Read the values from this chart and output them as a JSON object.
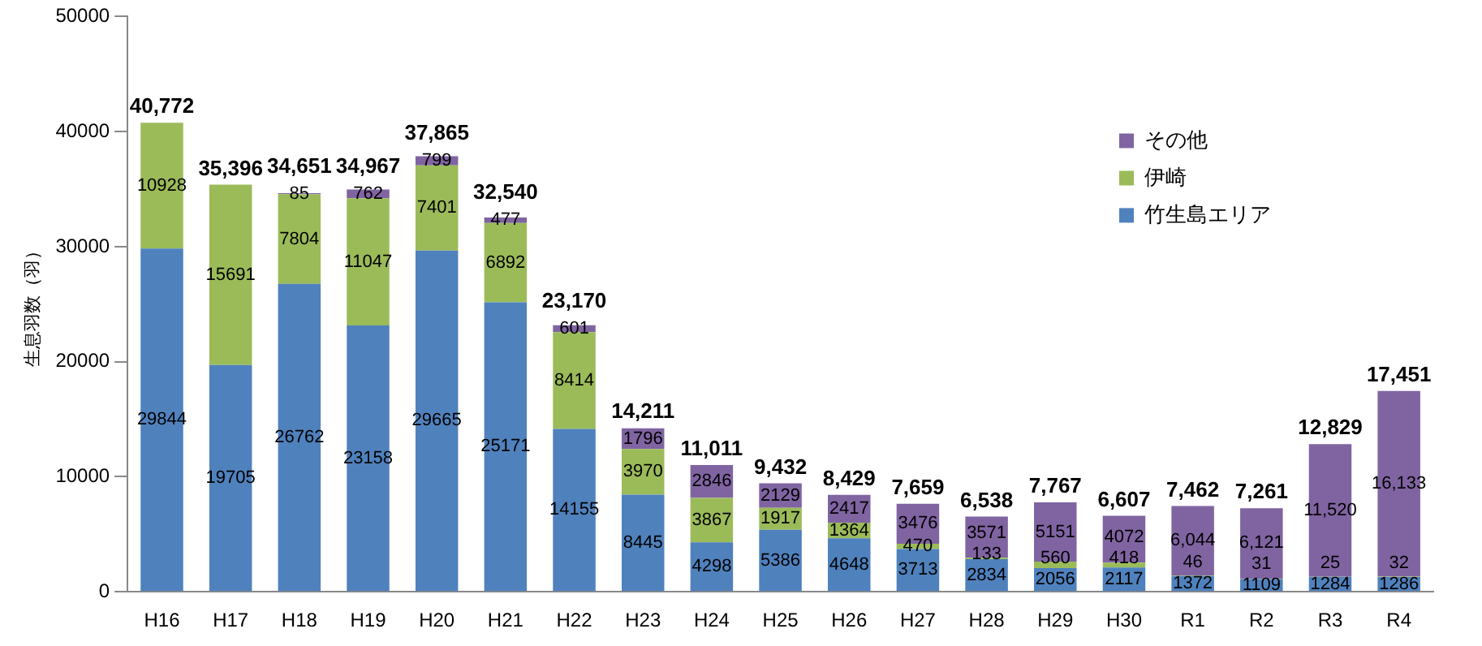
{
  "chart_data": {
    "type": "bar",
    "stacked": true,
    "ylabel": "生息羽数（羽）",
    "categories": [
      "H16",
      "H17",
      "H18",
      "H19",
      "H20",
      "H21",
      "H22",
      "H23",
      "H24",
      "H25",
      "H26",
      "H27",
      "H28",
      "H29",
      "H30",
      "R1",
      "R2",
      "R3",
      "R4"
    ],
    "series": [
      {
        "name": "竹生島エリア",
        "color": "#4f81bd",
        "values": [
          29844,
          19705,
          26762,
          23158,
          29665,
          25171,
          14155,
          8445,
          4298,
          5386,
          4648,
          3713,
          2834,
          2056,
          2117,
          1372,
          1109,
          1284,
          1286
        ],
        "value_labels": [
          "29844",
          "19705",
          "26762",
          "23158",
          "29665",
          "25171",
          "14155",
          "8445",
          "4298",
          "5386",
          "4648",
          "3713",
          "2834",
          "2056",
          "2117",
          "1372",
          "1109",
          "1284",
          "1286"
        ]
      },
      {
        "name": "伊崎",
        "color": "#9bbb59",
        "values": [
          10928,
          15691,
          7804,
          11047,
          7401,
          6892,
          8414,
          3970,
          3867,
          1917,
          1364,
          470,
          133,
          560,
          418,
          46,
          31,
          25,
          32
        ],
        "value_labels": [
          "10928",
          "15691",
          "7804",
          "11047",
          "7401",
          "6892",
          "8414",
          "3970",
          "3867",
          "1917",
          "1364",
          "470",
          "133",
          "560",
          "418",
          "46",
          "31",
          "25",
          "32"
        ]
      },
      {
        "name": "その他",
        "color": "#8064a2",
        "values": [
          null,
          null,
          85,
          762,
          799,
          477,
          601,
          1796,
          2846,
          2129,
          2417,
          3476,
          3571,
          5151,
          4072,
          6044,
          6121,
          11520,
          16133
        ],
        "value_labels": [
          null,
          null,
          "85",
          "762",
          "799",
          "477",
          "601",
          "1796",
          "2846",
          "2129",
          "2417",
          "3476",
          "3571",
          "5151",
          "4072",
          "6,044",
          "6,121",
          "11,520",
          "16,133"
        ]
      }
    ],
    "totals": [
      "40,772",
      "35,396",
      "34,651",
      "34,967",
      "37,865",
      "32,540",
      "23,170",
      "14,211",
      "11,011",
      "9,432",
      "8,429",
      "7,659",
      "6,538",
      "7,767",
      "6,607",
      "7,462",
      "7,261",
      "12,829",
      "17,451"
    ],
    "ylim": [
      0,
      50000
    ],
    "yticks": [
      0,
      10000,
      20000,
      30000,
      40000,
      50000
    ],
    "grid": false,
    "legend": "top right"
  }
}
